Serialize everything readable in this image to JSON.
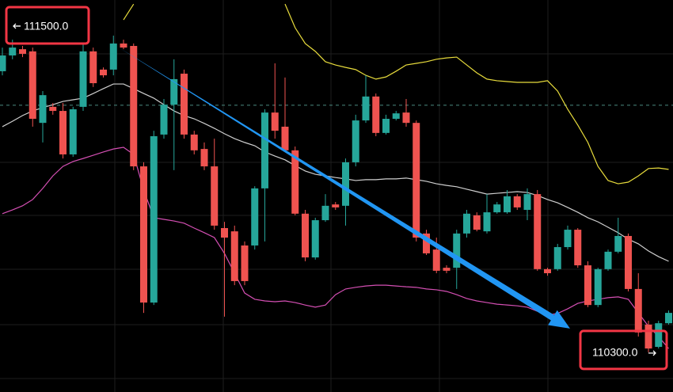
{
  "chart_data": {
    "type": "candlestick",
    "ylim": [
      110154,
      111596
    ],
    "up_color": "#26a69a",
    "down_color": "#ef5350",
    "open": [
      111334,
      111392,
      111415,
      111407,
      111144,
      111203,
      111188,
      111028,
      111203,
      111407,
      111340,
      111340,
      111436,
      111427,
      110984,
      110483,
      111101,
      111211,
      111325,
      111101,
      111048,
      110984,
      110757,
      110745,
      110693,
      110693,
      110903,
      111182,
      111130,
      111043,
      110810,
      110649,
      110786,
      110844,
      110839,
      110999,
      111153,
      111241,
      111107,
      111159,
      111182,
      111144,
      110737,
      110678,
      110611,
      110611,
      110737,
      110804,
      110745,
      110815,
      110815,
      110874,
      110824,
      110882,
      110606,
      110606,
      110687,
      110751,
      110620,
      110474,
      110606,
      110670,
      110728,
      110533,
      110402,
      110320,
      110407
    ],
    "high": [
      111421,
      111450,
      111427,
      111421,
      111261,
      111217,
      111217,
      111203,
      111436,
      111421,
      111348,
      111465,
      111450,
      111436,
      110999,
      111115,
      111232,
      111378,
      111340,
      111115,
      111072,
      111086,
      110780,
      110766,
      110708,
      110911,
      111194,
      111363,
      111311,
      111057,
      110824,
      110795,
      110882,
      110853,
      111013,
      111174,
      111319,
      111252,
      111174,
      111188,
      111232,
      111153,
      110751,
      110722,
      110620,
      110751,
      110824,
      110815,
      110882,
      110853,
      110897,
      110882,
      110903,
      110897,
      110611,
      110699,
      110766,
      110757,
      110635,
      110611,
      110678,
      110795,
      110737,
      110591,
      110416,
      110416,
      110454
    ],
    "low": [
      111319,
      111378,
      111386,
      111130,
      111072,
      111174,
      111013,
      111019,
      111188,
      111276,
      111311,
      111319,
      111415,
      110970,
      110445,
      110474,
      111086,
      110970,
      111086,
      111028,
      110970,
      110751,
      110431,
      110547,
      110547,
      110678,
      110708,
      111086,
      111037,
      110804,
      110635,
      110641,
      110780,
      110824,
      110766,
      110984,
      111144,
      111095,
      111101,
      111153,
      111130,
      110708,
      110658,
      110591,
      110591,
      110533,
      110722,
      110745,
      110737,
      110810,
      110810,
      110824,
      110786,
      110600,
      110582,
      110600,
      110678,
      110611,
      110466,
      110466,
      110600,
      110664,
      110524,
      110358,
      110300,
      110314,
      110402
    ],
    "close": [
      111392,
      111421,
      111398,
      111159,
      111246,
      111188,
      111028,
      111194,
      111407,
      111290,
      111319,
      111436,
      111421,
      110984,
      110483,
      111095,
      111211,
      111305,
      111101,
      111043,
      110984,
      110766,
      110722,
      110562,
      110562,
      110903,
      111182,
      111115,
      111043,
      110810,
      110649,
      110786,
      110839,
      110833,
      110999,
      111153,
      111241,
      111107,
      111159,
      111179,
      111144,
      110722,
      110664,
      110600,
      110600,
      110737,
      110810,
      110751,
      110815,
      110844,
      110874,
      110833,
      110882,
      110606,
      110591,
      110687,
      110751,
      110620,
      110474,
      110606,
      110670,
      110728,
      110533,
      110373,
      110314,
      110407,
      110445
    ],
    "series": [
      {
        "color": "#e8dc3c",
        "values": [
          null,
          null,
          null,
          null,
          null,
          null,
          null,
          null,
          null,
          null,
          null,
          null,
          111523,
          111581,
          null,
          null,
          null,
          null,
          null,
          null,
          null,
          null,
          null,
          null,
          null,
          null,
          null,
          null,
          111581,
          111494,
          111436,
          111407,
          111369,
          111357,
          111348,
          111340,
          111319,
          111305,
          111313,
          111334,
          111357,
          111363,
          111369,
          111378,
          111383,
          111386,
          111357,
          111328,
          111305,
          111299,
          111296,
          111293,
          111293,
          111293,
          111299,
          111261,
          111194,
          111136,
          111072,
          110984,
          110932,
          110920,
          110926,
          110949,
          110976,
          110978,
          110973
        ]
      },
      {
        "color": "#cfcfcf",
        "values": [
          111130,
          111150,
          111171,
          111188,
          111200,
          111211,
          111223,
          111229,
          111235,
          111252,
          111270,
          111287,
          111287,
          111270,
          111252,
          111235,
          111211,
          111188,
          111171,
          111159,
          111142,
          111124,
          111104,
          111086,
          111072,
          111060,
          111037,
          111022,
          111008,
          110987,
          110967,
          110955,
          110949,
          110943,
          110938,
          110932,
          110935,
          110935,
          110938,
          110938,
          110941,
          110935,
          110929,
          110920,
          110914,
          110909,
          110900,
          110891,
          110882,
          110885,
          110888,
          110891,
          110888,
          110877,
          110862,
          110850,
          110833,
          110815,
          110795,
          110780,
          110760,
          110740,
          110716,
          110699,
          110673,
          110652,
          110635
        ]
      },
      {
        "color": "#d44fb3",
        "values": [
          110810,
          110824,
          110839,
          110862,
          110903,
          110949,
          110984,
          111002,
          111013,
          111025,
          111037,
          111048,
          111054,
          111028,
          110897,
          110795,
          110789,
          110783,
          110775,
          110757,
          110740,
          110722,
          110664,
          110591,
          110518,
          110495,
          110489,
          110486,
          110489,
          110483,
          110474,
          110466,
          110474,
          110512,
          110533,
          110539,
          110544,
          110547,
          110547,
          110544,
          110541,
          110539,
          110533,
          110530,
          110524,
          110512,
          110498,
          110489,
          110483,
          110477,
          110474,
          110471,
          110466,
          110451,
          110437,
          110443,
          110460,
          110480,
          110489,
          110495,
          110501,
          110504,
          110495,
          110445,
          110396,
          110358,
          110314
        ]
      }
    ],
    "price_line": {
      "value": 111209,
      "color": "#4a8a80",
      "style": "dashed"
    },
    "annotation": {
      "type": "arrow",
      "color": "#2196f3",
      "box_color": "#f23645",
      "from": {
        "value": 111500,
        "label": "111500.0"
      },
      "to": {
        "value": 110300,
        "label": "110300.0"
      }
    }
  }
}
